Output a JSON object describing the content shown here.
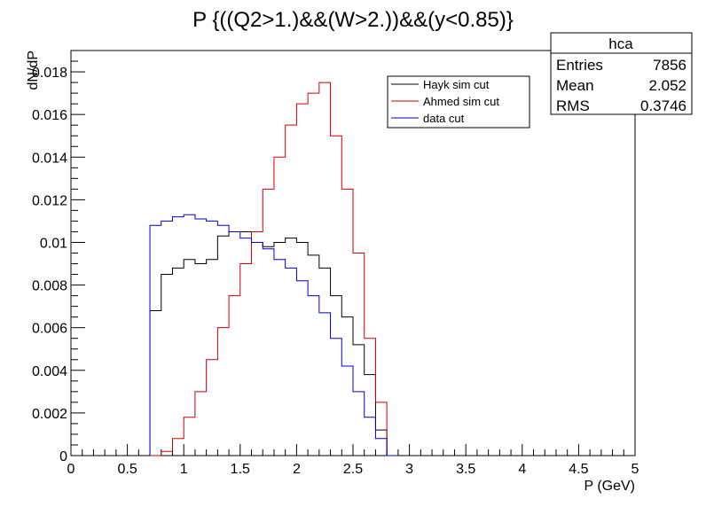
{
  "chart_data": {
    "type": "line",
    "title": "P {((Q2>1.)&&(W>2.))&&(y<0.85)}",
    "xlabel": "P (GeV)",
    "ylabel": "dN/dP",
    "xlim": [
      0,
      5
    ],
    "ylim": [
      0,
      0.019
    ],
    "x_ticks": [
      "0",
      "0.5",
      "1",
      "1.5",
      "2",
      "2.5",
      "3",
      "3.5",
      "4",
      "4.5",
      "5"
    ],
    "y_ticks": [
      "0",
      "0.002",
      "0.004",
      "0.006",
      "0.008",
      "0.01",
      "0.012",
      "0.014",
      "0.016",
      "0.018"
    ],
    "grid": false,
    "legend_position": "top-right",
    "series": [
      {
        "name": "Hayk sim cut",
        "color": "#000000",
        "x": [
          0.75,
          0.85,
          0.95,
          1.05,
          1.15,
          1.25,
          1.35,
          1.45,
          1.55,
          1.65,
          1.75,
          1.85,
          1.95,
          2.05,
          2.15,
          2.25,
          2.35,
          2.45,
          2.55,
          2.65,
          2.75,
          2.85
        ],
        "y": [
          0.0068,
          0.0085,
          0.0088,
          0.0092,
          0.009,
          0.0092,
          0.0103,
          0.0105,
          0.0105,
          0.01,
          0.0098,
          0.01,
          0.0102,
          0.01,
          0.0094,
          0.0088,
          0.0075,
          0.0065,
          0.0052,
          0.0038,
          0.0012,
          0.0
        ]
      },
      {
        "name": "Ahmed sim cut",
        "color": "#cc0000",
        "x": [
          0.75,
          0.85,
          0.95,
          1.05,
          1.15,
          1.25,
          1.35,
          1.45,
          1.55,
          1.65,
          1.75,
          1.85,
          1.95,
          2.05,
          2.15,
          2.25,
          2.35,
          2.45,
          2.55,
          2.65,
          2.75,
          2.85
        ],
        "y": [
          0.0,
          0.0002,
          0.0008,
          0.0018,
          0.003,
          0.0045,
          0.006,
          0.0075,
          0.009,
          0.0105,
          0.0125,
          0.014,
          0.0155,
          0.0165,
          0.017,
          0.0175,
          0.015,
          0.0125,
          0.0095,
          0.0055,
          0.0025,
          0.0
        ]
      },
      {
        "name": "data cut",
        "color": "#0000cc",
        "x": [
          0.75,
          0.85,
          0.95,
          1.05,
          1.15,
          1.25,
          1.35,
          1.45,
          1.55,
          1.65,
          1.75,
          1.85,
          1.95,
          2.05,
          2.15,
          2.25,
          2.35,
          2.45,
          2.55,
          2.65,
          2.75,
          2.85
        ],
        "y": [
          0.0108,
          0.011,
          0.0112,
          0.0113,
          0.0111,
          0.011,
          0.0108,
          0.0105,
          0.0102,
          0.01,
          0.0097,
          0.0092,
          0.0088,
          0.0082,
          0.0075,
          0.0067,
          0.0055,
          0.0042,
          0.003,
          0.0018,
          0.0008,
          0.0
        ]
      }
    ]
  },
  "stats_box": {
    "name": "hca",
    "rows": [
      {
        "label": "Entries",
        "value": "7856"
      },
      {
        "label": "Mean",
        "value": "2.052"
      },
      {
        "label": "RMS",
        "value": "0.3746"
      }
    ]
  }
}
